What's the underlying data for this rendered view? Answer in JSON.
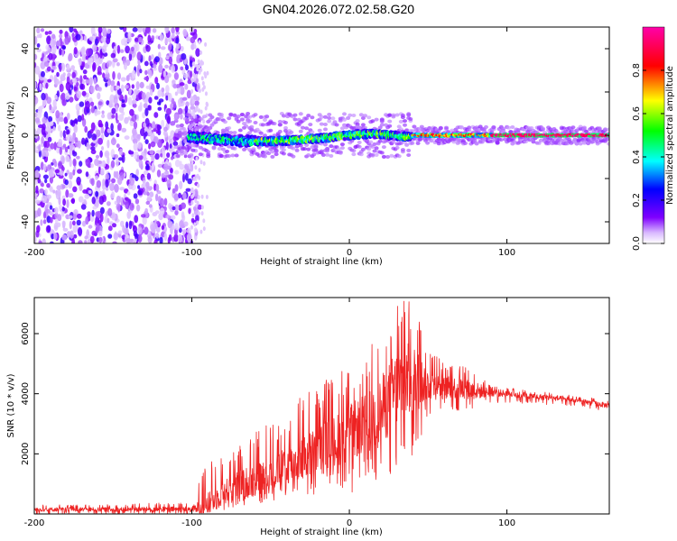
{
  "title": "GN04.2026.072.02.58.G20",
  "chart_data": [
    {
      "type": "heatmap",
      "xlabel": "Height of straight line (km)",
      "ylabel": "Frequency (Hz)",
      "xlim": [
        -200,
        165
      ],
      "ylim": [
        -50,
        50
      ],
      "x_ticks": [
        -200,
        -100,
        0,
        100
      ],
      "y_ticks": [
        -40,
        -20,
        0,
        20,
        40
      ],
      "grid": false,
      "colorbar": {
        "label": "Normalized spectral amplitude",
        "range": [
          0.0,
          1.0
        ],
        "ticks": [
          0.0,
          0.2,
          0.4,
          0.6,
          0.8
        ],
        "colormap": [
          "#ffffff",
          "#7f00ff",
          "#0000ff",
          "#00ffff",
          "#00ff00",
          "#ffff00",
          "#ff0000",
          "#ff00ff"
        ]
      },
      "description_regions": [
        {
          "x_range": [
            -200,
            -100
          ],
          "freq_range": [
            -50,
            50
          ],
          "amplitude": [
            0.0,
            0.25
          ]
        },
        {
          "x_range": [
            -100,
            40
          ],
          "freq_range": [
            -6,
            6
          ],
          "amplitude": [
            0.2,
            0.75
          ]
        },
        {
          "x_range": [
            40,
            90
          ],
          "freq_range": [
            -1.5,
            1.5
          ],
          "amplitude": [
            0.6,
            0.95
          ]
        },
        {
          "x_range": [
            90,
            165
          ],
          "freq_range": [
            -1,
            1
          ],
          "amplitude": [
            0.85,
            1.0
          ]
        }
      ]
    },
    {
      "type": "line",
      "xlabel": "Height of straight line (km)",
      "ylabel": "SNR (10 * v/v)",
      "xlim": [
        -200,
        165
      ],
      "ylim": [
        0,
        7200
      ],
      "x_ticks": [
        -200,
        -100,
        0,
        100
      ],
      "y_ticks": [
        2000,
        4000,
        6000
      ],
      "grid": false,
      "series": [
        {
          "color": "#ee2222",
          "envelope_x": [
            -200,
            -150,
            -100,
            -90,
            -80,
            -70,
            -60,
            -50,
            -40,
            -30,
            -20,
            -10,
            0,
            10,
            20,
            30,
            40,
            50,
            60,
            70,
            80,
            90,
            100,
            120,
            140,
            165
          ],
          "envelope_mean": [
            150,
            150,
            160,
            300,
            700,
            1000,
            1100,
            1300,
            1600,
            1800,
            2100,
            2400,
            2700,
            3000,
            3400,
            4200,
            4500,
            4300,
            4200,
            4200,
            4100,
            4050,
            4000,
            3900,
            3800,
            3600
          ],
          "envelope_max": [
            300,
            320,
            400,
            1800,
            1900,
            2300,
            2800,
            3000,
            3200,
            4000,
            4300,
            4700,
            4800,
            5400,
            6300,
            7200,
            7200,
            5500,
            5100,
            5000,
            4800,
            4300,
            4200,
            4100,
            3950,
            3800
          ],
          "envelope_min": [
            0,
            0,
            0,
            50,
            100,
            250,
            300,
            400,
            500,
            800,
            300,
            900,
            600,
            1000,
            1100,
            1400,
            1600,
            3200,
            3400,
            3400,
            3500,
            3700,
            3700,
            3650,
            3600,
            3400
          ]
        }
      ]
    }
  ]
}
